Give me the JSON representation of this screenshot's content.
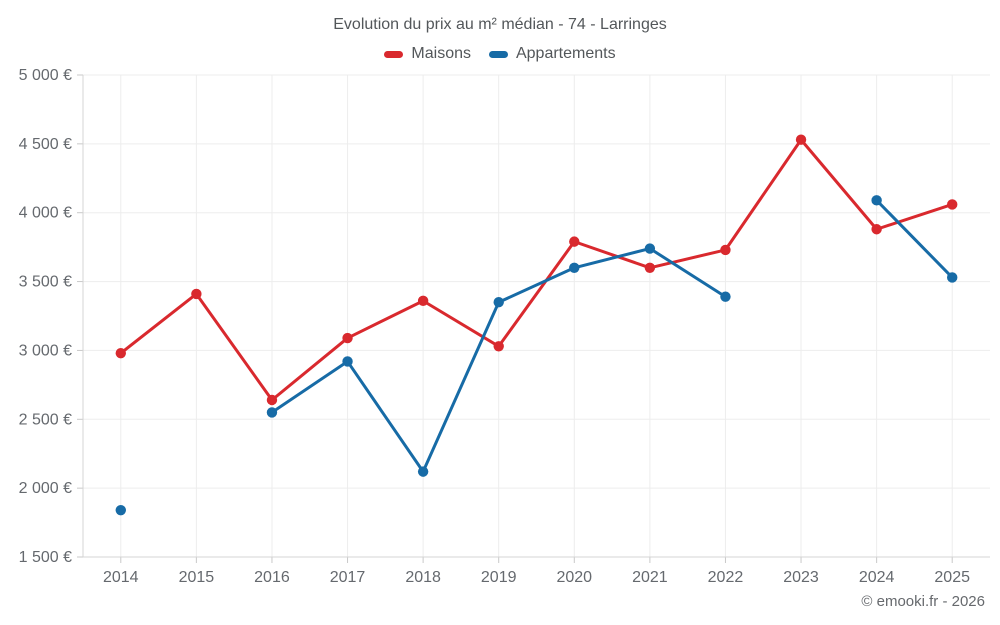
{
  "chart_data": {
    "type": "line",
    "title": "Evolution du prix au m² médian - 74 - Larringes",
    "categories": [
      "2014",
      "2015",
      "2016",
      "2017",
      "2018",
      "2019",
      "2020",
      "2021",
      "2022",
      "2023",
      "2024",
      "2025"
    ],
    "series": [
      {
        "name": "Maisons",
        "color": "#d9292e",
        "values": [
          2980,
          3410,
          2640,
          3090,
          3360,
          3030,
          3790,
          3600,
          3730,
          4530,
          3880,
          4060
        ]
      },
      {
        "name": "Appartements",
        "color": "#176ba6",
        "values": [
          1840,
          null,
          2550,
          2920,
          2120,
          3350,
          3600,
          3740,
          3390,
          null,
          4090,
          3530
        ]
      }
    ],
    "ylim": [
      1500,
      5000
    ],
    "yticks": [
      1500,
      2000,
      2500,
      3000,
      3500,
      4000,
      4500,
      5000
    ],
    "ytick_labels": [
      "1 500 €",
      "2 000 €",
      "2 500 €",
      "3 000 €",
      "3 500 €",
      "4 000 €",
      "4 500 €",
      "5 000 €"
    ],
    "grid": true,
    "legend_position": "top",
    "axis_text_color": "#65696e",
    "grid_color": "#ededed",
    "axis_line_color": "#d4d4d4",
    "tick_color": "#c9c9c9"
  },
  "footer": {
    "copyright": "© emooki.fr - 2026"
  }
}
